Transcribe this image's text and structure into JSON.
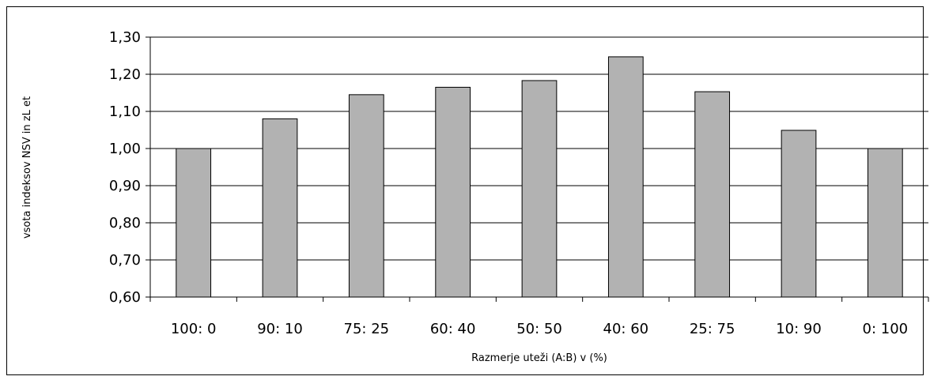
{
  "chart_data": {
    "type": "bar",
    "title": "",
    "xlabel": "Razmerje   uteži (A:B)   v (%)",
    "ylabel": "vsota  indeksov  NSV in  zL et",
    "categories": [
      "100: 0",
      "90: 10",
      "75: 25",
      "60: 40",
      "50: 50",
      "40: 60",
      "25: 75",
      "10: 90",
      "0: 100"
    ],
    "values": [
      1.0,
      1.08,
      1.145,
      1.165,
      1.183,
      1.247,
      1.153,
      1.049,
      1.0
    ],
    "ylim": [
      0.6,
      1.3
    ],
    "yticks": [
      {
        "value": 0.6,
        "label": "0,60"
      },
      {
        "value": 0.7,
        "label": "0,70"
      },
      {
        "value": 0.8,
        "label": "0,80"
      },
      {
        "value": 0.9,
        "label": "0,90"
      },
      {
        "value": 1.0,
        "label": "1,00"
      },
      {
        "value": 1.1,
        "label": "1,10"
      },
      {
        "value": 1.2,
        "label": "1,20"
      },
      {
        "value": 1.3,
        "label": "1,30"
      }
    ],
    "grid": true,
    "legend": "none",
    "bar_color": "#b2b2b2",
    "bar_edge_color": "#000000"
  }
}
